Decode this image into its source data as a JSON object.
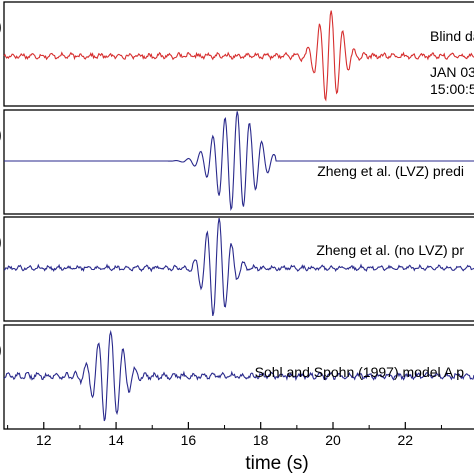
{
  "figure": {
    "xlabel": "time (s)",
    "xticks": [
      12,
      14,
      16,
      18,
      20,
      22
    ],
    "xlim": [
      10.9,
      23.9
    ]
  },
  "chart_data": {
    "type": "line",
    "xlabel": "time (s)",
    "x_range": [
      10.9,
      23.9
    ],
    "panels": [
      {
        "label": "Blind da",
        "extra_lines": [
          "JAN 03",
          "15:00:5"
        ],
        "color": "#d62f2f",
        "wave": {
          "noise_amplitude": 0.06,
          "packet_center_s": 19.9,
          "packet_width_s": 0.45,
          "packet_amplitude": 1.0,
          "dominant_period_s": 0.32
        }
      },
      {
        "label": "Zheng et al. (LVZ) predi",
        "color": "#2a2a8c",
        "wave": {
          "noise_amplitude": 0.0,
          "packet_center_s": 17.3,
          "packet_width_s": 0.75,
          "packet_amplitude": 1.0,
          "dominant_period_s": 0.34
        }
      },
      {
        "label": "Zheng et al. (no LVZ) pr",
        "color": "#2a2a8c",
        "wave": {
          "noise_amplitude": 0.05,
          "packet_center_s": 16.8,
          "packet_width_s": 0.45,
          "packet_amplitude": 1.0,
          "dominant_period_s": 0.34
        }
      },
      {
        "label": "Sohl and Spohn (1997) model A p",
        "color": "#2a2a8c",
        "wave": {
          "noise_amplitude": 0.07,
          "packet_center_s": 13.8,
          "packet_width_s": 0.5,
          "packet_amplitude": 1.0,
          "dominant_period_s": 0.34
        }
      }
    ]
  }
}
